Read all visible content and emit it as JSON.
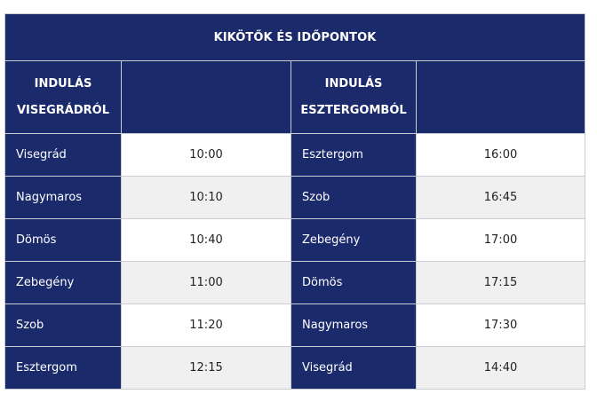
{
  "table": {
    "title": "KIKÖTŐK ÉS IDŐPONTOK",
    "left_header": [
      "INDULÁS",
      "VISEGRÁDRÓL"
    ],
    "right_header": [
      "INDULÁS",
      "ESZTERGOMBÓL"
    ],
    "rows": [
      {
        "left_stop": "Visegrád",
        "left_time": "10:00",
        "right_stop": "Esztergom",
        "right_time": "16:00"
      },
      {
        "left_stop": "Nagymaros",
        "left_time": "10:10",
        "right_stop": "Szob",
        "right_time": "16:45"
      },
      {
        "left_stop": "Dömös",
        "left_time": "10:40",
        "right_stop": "Zebegény",
        "right_time": "17:00"
      },
      {
        "left_stop": "Zebegény",
        "left_time": "11:00",
        "right_stop": "Dömös",
        "right_time": "17:15"
      },
      {
        "left_stop": "Szob",
        "left_time": "11:20",
        "right_stop": "Nagymaros",
        "right_time": "17:30"
      },
      {
        "left_stop": "Esztergom",
        "left_time": "12:15",
        "right_stop": "Visegrád",
        "right_time": "14:40"
      }
    ]
  },
  "colors": {
    "header_bg": "#1b2a6b",
    "header_text": "#ffffff",
    "row_alt_bg": "#f0f0f0",
    "border": "#c9ccd3"
  }
}
